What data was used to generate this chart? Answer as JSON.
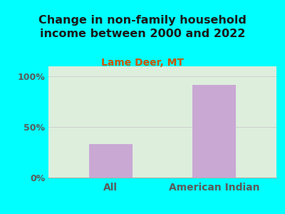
{
  "categories": [
    "All",
    "American Indian"
  ],
  "values": [
    33,
    92
  ],
  "bar_color": "#c9a8d4",
  "background_color": "#00FFFF",
  "plot_bg_color": "#ddeedd",
  "title": "Change in non-family household\nincome between 2000 and 2022",
  "subtitle": "Lame Deer, MT",
  "title_fontsize": 11.5,
  "subtitle_fontsize": 10,
  "title_color": "#1a1a1a",
  "subtitle_color": "#cc5500",
  "tick_label_color": "#5a5a5a",
  "xlabel_fontsize": 10,
  "ylabel_fontsize": 9,
  "ylim": [
    0,
    110
  ],
  "yticks": [
    0,
    50,
    100
  ],
  "ytick_labels": [
    "0%",
    "50%",
    "100%"
  ],
  "grid_color": "#cccccc",
  "bar_width": 0.42
}
